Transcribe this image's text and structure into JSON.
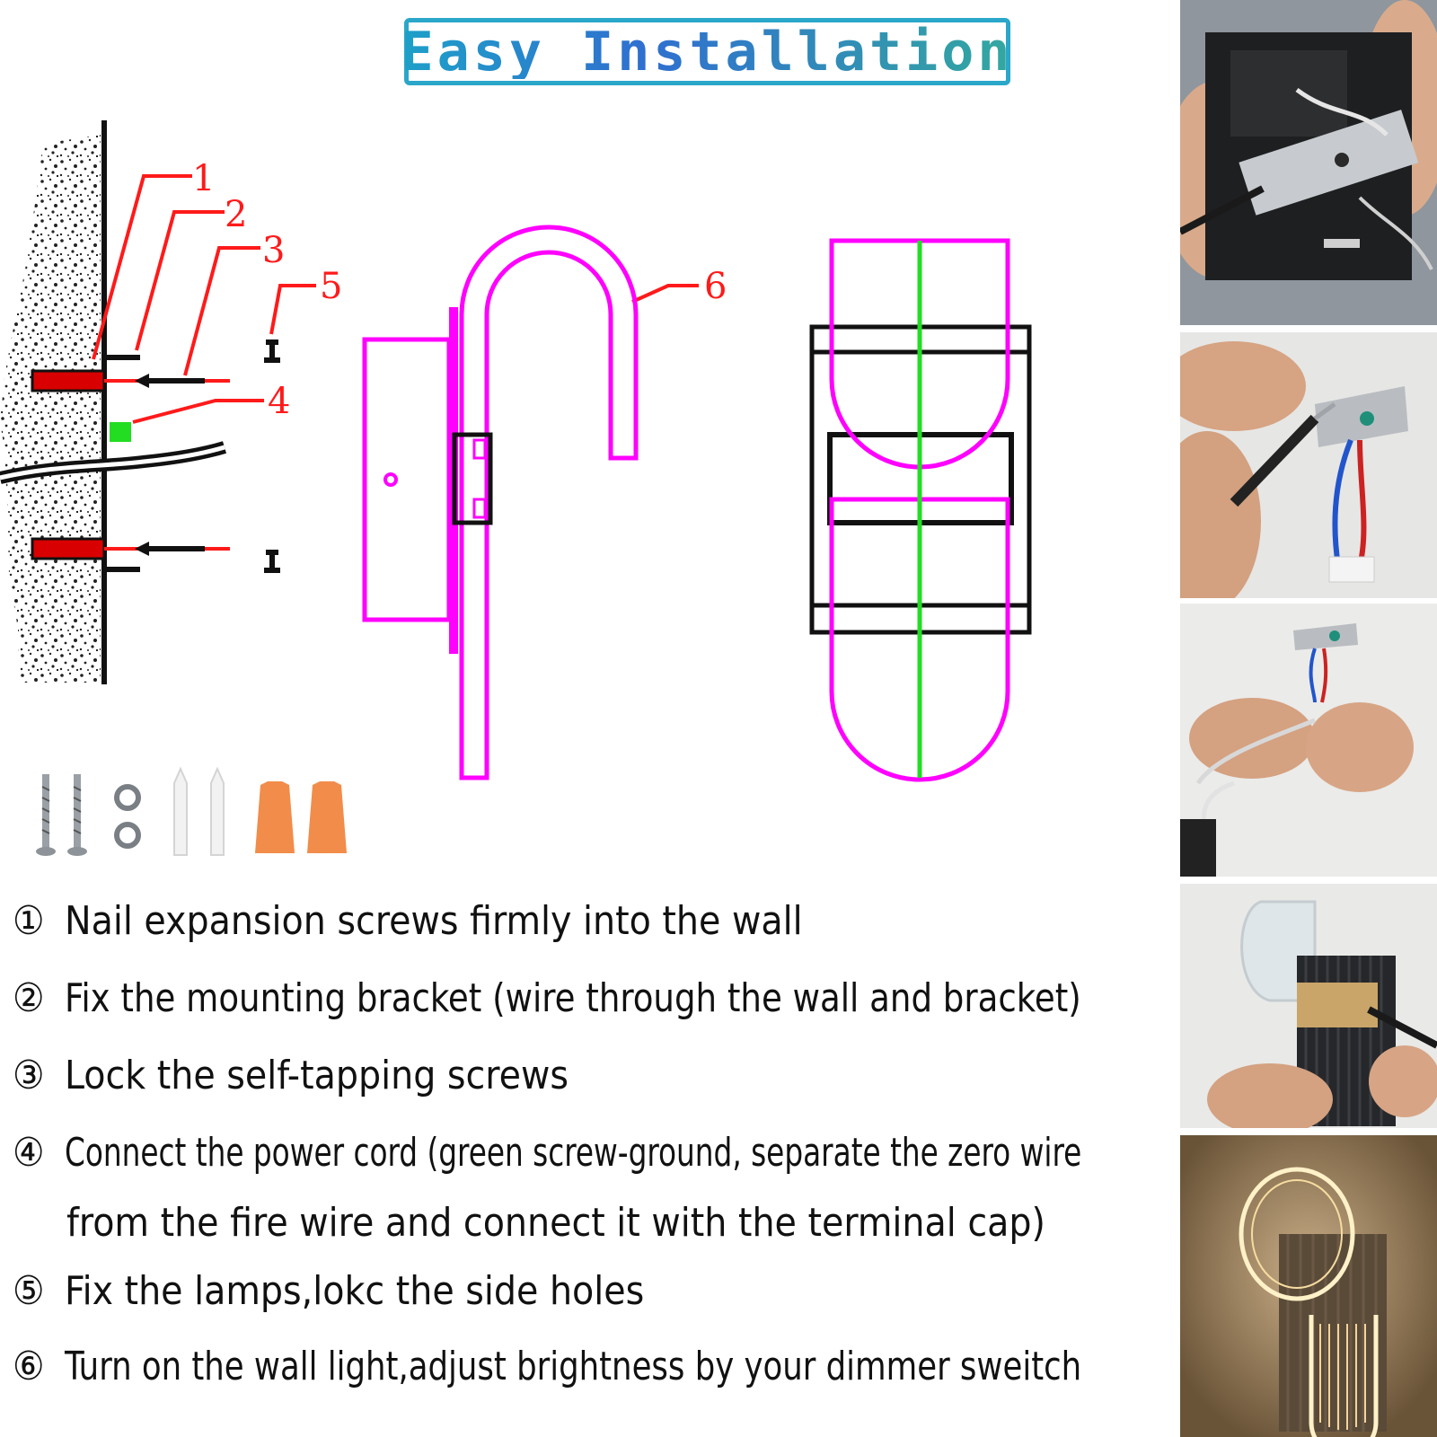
{
  "title": "Easy Installation",
  "callouts": [
    "1",
    "2",
    "3",
    "4",
    "5",
    "6"
  ],
  "steps": [
    {
      "num": "①",
      "text": "Nail expansion screws firmly into the wall"
    },
    {
      "num": "②",
      "text": "Fix the mounting bracket (wire through the wall and bracket)"
    },
    {
      "num": "③",
      "text": "Lock the self-tapping screws"
    },
    {
      "num": "④",
      "text": "Connect the power cord (green screw-ground, separate the zero wire"
    },
    {
      "num": "",
      "text": "from the fire wire and connect it with the terminal cap)"
    },
    {
      "num": "⑤",
      "text": "Fix the lamps,lokc the side holes"
    },
    {
      "num": "⑥",
      "text": "Turn on the wall light,adjust brightness by your dimmer sweitch"
    }
  ],
  "photos": [
    {
      "name": "junction-box-wiring-photo"
    },
    {
      "name": "bracket-screwdriver-photo"
    },
    {
      "name": "terminal-connection-photo"
    },
    {
      "name": "lamp-mounting-photo"
    },
    {
      "name": "lit-lamp-photo"
    }
  ],
  "colors": {
    "magenta": "#ff00ff",
    "green": "#22dd22",
    "red": "#ff1a1a",
    "orange": "#f28c4a",
    "title_border": "#2aa7c9"
  }
}
